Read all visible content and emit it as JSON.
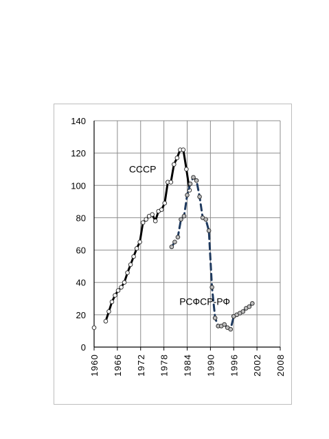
{
  "chart_data": {
    "type": "line",
    "title": "",
    "xlabel": "",
    "ylabel": "",
    "xlim": [
      1960,
      2008
    ],
    "ylim": [
      0,
      140
    ],
    "y_ticks": [
      0,
      20,
      40,
      60,
      80,
      100,
      120,
      140
    ],
    "x_ticks": [
      1960,
      1966,
      1972,
      1978,
      1984,
      1990,
      1996,
      2002,
      2008
    ],
    "grid": true,
    "legend": "none",
    "series": [
      {
        "name": "СССР",
        "style": "solid",
        "color": "#000000",
        "marker_fill": "#ffffff",
        "segments": [
          [
            [
              1960,
              12
            ]
          ],
          [
            [
              1963,
              16
            ],
            [
              1963.8,
              22
            ],
            [
              1964.6,
              28
            ],
            [
              1965.4,
              32
            ],
            [
              1966.2,
              35
            ],
            [
              1967,
              37
            ],
            [
              1967.8,
              40
            ],
            [
              1968.6,
              46
            ],
            [
              1969.4,
              51
            ],
            [
              1970.2,
              56
            ],
            [
              1971,
              61
            ],
            [
              1971.8,
              65
            ],
            [
              1972.6,
              77
            ],
            [
              1973.4,
              79
            ],
            [
              1974.2,
              81
            ],
            [
              1975,
              82
            ],
            [
              1975.8,
              78
            ],
            [
              1976.6,
              84
            ],
            [
              1977.4,
              85
            ],
            [
              1978.2,
              89
            ],
            [
              1979,
              102
            ],
            [
              1979.8,
              102
            ],
            [
              1980.6,
              113
            ],
            [
              1981.4,
              117
            ],
            [
              1982.2,
              122
            ],
            [
              1983,
              122
            ],
            [
              1983.8,
              110
            ],
            [
              1984.6,
              97
            ]
          ]
        ]
      },
      {
        "name": "РСФСР-РФ",
        "style": "dashed",
        "color": "#1f3a5f",
        "marker_fill": "#bfbfbf",
        "segments": [
          [
            [
              1980,
              62
            ],
            [
              1980.8,
              65
            ],
            [
              1981.6,
              68
            ],
            [
              1982.4,
              79
            ],
            [
              1983.2,
              81
            ],
            [
              1984,
              94
            ],
            [
              1984.8,
              101
            ],
            [
              1985.6,
              105
            ],
            [
              1986.4,
              103
            ],
            [
              1987.2,
              93
            ],
            [
              1988,
              80
            ],
            [
              1988.8,
              79
            ],
            [
              1989.6,
              72
            ],
            [
              1990.4,
              37
            ],
            [
              1991.2,
              18
            ],
            [
              1992,
              13
            ],
            [
              1992.8,
              13
            ],
            [
              1993.6,
              14
            ],
            [
              1994.4,
              12
            ],
            [
              1995.2,
              11
            ],
            [
              1996,
              19
            ]
          ],
          [
            [
              1996,
              19
            ],
            [
              1996.8,
              20
            ],
            [
              1997.6,
              21
            ],
            [
              1998.4,
              22
            ],
            [
              1999.2,
              24
            ],
            [
              2000,
              25
            ],
            [
              2000.8,
              27
            ]
          ]
        ]
      }
    ],
    "annotations": [
      {
        "text": "СССР",
        "x": 1969,
        "y": 108
      },
      {
        "text": "РСФСР-РФ",
        "x": 1982,
        "y": 26
      }
    ]
  }
}
